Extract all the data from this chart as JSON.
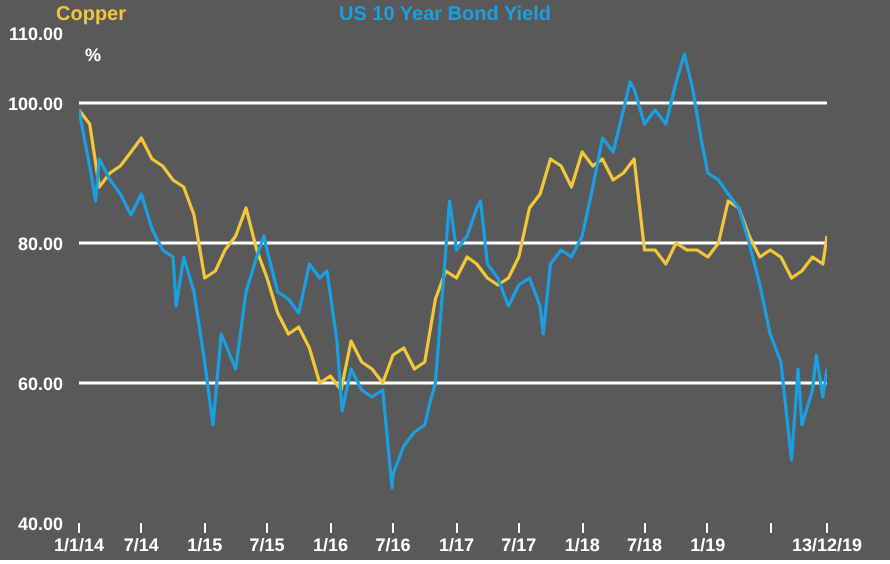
{
  "chart_data": {
    "type": "line",
    "ylabel": "%",
    "legend": "top",
    "grid": "y",
    "line_style": "solid",
    "marker": "none",
    "xlim": [
      "2014-01-01",
      "2019-12-13"
    ],
    "xticks": [
      {
        "value": "2014-01-01",
        "label": "1/1/14"
      },
      {
        "value": "2014-07-01",
        "label": "7/14"
      },
      {
        "value": "2015-01-01",
        "label": "1/15"
      },
      {
        "value": "2015-07-01",
        "label": "7/15"
      },
      {
        "value": "2016-01-01",
        "label": "1/16"
      },
      {
        "value": "2016-07-01",
        "label": "7/16"
      },
      {
        "value": "2017-01-01",
        "label": "1/17"
      },
      {
        "value": "2017-07-01",
        "label": "7/17"
      },
      {
        "value": "2018-01-01",
        "label": "1/18"
      },
      {
        "value": "2018-07-01",
        "label": "7/18"
      },
      {
        "value": "2019-01-01",
        "label": "1/19"
      },
      {
        "value": "2019-07-01",
        "label": null
      },
      {
        "value": "2019-12-13",
        "label": "13/12/19"
      }
    ],
    "ylim": [
      40,
      110
    ],
    "yticks": [
      {
        "value": 40,
        "label": "40.00"
      },
      {
        "value": 60,
        "label": "60.00"
      },
      {
        "value": 80,
        "label": "80.00"
      },
      {
        "value": 100,
        "label": "100.00"
      },
      {
        "value": 110,
        "label": "110.00"
      }
    ],
    "series": [
      {
        "name": "Copper",
        "color": "#f2c73a",
        "x": [
          "2014-01-01",
          "2014-02-01",
          "2014-03-01",
          "2014-04-01",
          "2014-05-01",
          "2014-06-01",
          "2014-07-01",
          "2014-08-01",
          "2014-09-01",
          "2014-10-01",
          "2014-11-01",
          "2014-12-01",
          "2015-01-01",
          "2015-02-01",
          "2015-03-01",
          "2015-04-01",
          "2015-05-01",
          "2015-06-01",
          "2015-07-01",
          "2015-08-01",
          "2015-09-01",
          "2015-10-01",
          "2015-11-01",
          "2015-12-01",
          "2016-01-01",
          "2016-02-01",
          "2016-03-01",
          "2016-04-01",
          "2016-05-01",
          "2016-06-01",
          "2016-07-01",
          "2016-08-01",
          "2016-09-01",
          "2016-10-01",
          "2016-11-01",
          "2016-12-01",
          "2017-01-01",
          "2017-02-01",
          "2017-03-01",
          "2017-04-01",
          "2017-05-01",
          "2017-06-01",
          "2017-07-01",
          "2017-08-01",
          "2017-09-01",
          "2017-10-01",
          "2017-11-01",
          "2017-12-01",
          "2018-01-01",
          "2018-02-01",
          "2018-03-01",
          "2018-04-01",
          "2018-05-01",
          "2018-06-01",
          "2018-07-01",
          "2018-08-01",
          "2018-09-01",
          "2018-10-01",
          "2018-11-01",
          "2018-12-01",
          "2019-01-01",
          "2019-02-01",
          "2019-03-01",
          "2019-04-01",
          "2019-05-01",
          "2019-06-01",
          "2019-07-01",
          "2019-08-01",
          "2019-09-01",
          "2019-10-01",
          "2019-11-01",
          "2019-12-01",
          "2019-12-13"
        ],
        "values": [
          99,
          97,
          88,
          90,
          91,
          93,
          95,
          92,
          91,
          89,
          88,
          84,
          75,
          76,
          79,
          81,
          85,
          79,
          75,
          70,
          67,
          68,
          65,
          60,
          61,
          59,
          66,
          63,
          62,
          60,
          64,
          65,
          62,
          63,
          72,
          76,
          75,
          78,
          77,
          75,
          74,
          75,
          78,
          85,
          87,
          92,
          91,
          88,
          93,
          91,
          92,
          89,
          90,
          92,
          79,
          79,
          77,
          80,
          79,
          79,
          78,
          80,
          86,
          85,
          81,
          78,
          79,
          78,
          75,
          76,
          78,
          77,
          81
        ]
      },
      {
        "name": "US 10 Year Bond Yield",
        "color": "#1a9fe3",
        "x": [
          "2014-01-01",
          "2014-01-20",
          "2014-02-01",
          "2014-02-18",
          "2014-03-01",
          "2014-04-01",
          "2014-05-01",
          "2014-06-01",
          "2014-07-01",
          "2014-08-01",
          "2014-09-01",
          "2014-10-01",
          "2014-10-10",
          "2014-11-01",
          "2014-12-01",
          "2015-01-01",
          "2015-01-25",
          "2015-02-18",
          "2015-04-01",
          "2015-05-01",
          "2015-06-01",
          "2015-06-22",
          "2015-07-01",
          "2015-08-01",
          "2015-09-01",
          "2015-10-01",
          "2015-11-01",
          "2015-12-01",
          "2015-12-22",
          "2016-01-20",
          "2016-02-04",
          "2016-03-01",
          "2016-04-01",
          "2016-05-01",
          "2016-06-01",
          "2016-06-28",
          "2016-07-01",
          "2016-08-01",
          "2016-09-01",
          "2016-10-01",
          "2016-10-15",
          "2016-11-01",
          "2016-12-01",
          "2016-12-12",
          "2017-01-01",
          "2017-02-01",
          "2017-03-01",
          "2017-03-12",
          "2017-04-01",
          "2017-05-01",
          "2017-06-01",
          "2017-07-01",
          "2017-08-01",
          "2017-09-01",
          "2017-09-10",
          "2017-10-01",
          "2017-11-01",
          "2017-12-01",
          "2018-01-01",
          "2018-02-01",
          "2018-03-01",
          "2018-04-01",
          "2018-05-01",
          "2018-05-20",
          "2018-06-01",
          "2018-07-01",
          "2018-08-01",
          "2018-09-01",
          "2018-10-01",
          "2018-10-25",
          "2018-11-18",
          "2018-12-12",
          "2019-01-01",
          "2019-02-01",
          "2019-03-01",
          "2019-04-01",
          "2019-05-01",
          "2019-06-01",
          "2019-07-01",
          "2019-08-01",
          "2019-09-01",
          "2019-09-20",
          "2019-10-01",
          "2019-11-01",
          "2019-11-12",
          "2019-12-01",
          "2019-12-13"
        ],
        "values": [
          99,
          94,
          91,
          86,
          92,
          89,
          87,
          84,
          87,
          82,
          79,
          78,
          71,
          78,
          73,
          63,
          54,
          67,
          62,
          73,
          78,
          81,
          79,
          73,
          72,
          70,
          77,
          75,
          76,
          66,
          56,
          62,
          59,
          58,
          59,
          45,
          47,
          51,
          53,
          54,
          57,
          60,
          79,
          86,
          79,
          81,
          85,
          86,
          77,
          75,
          71,
          74,
          75,
          71,
          67,
          77,
          79,
          78,
          81,
          88,
          95,
          93,
          99,
          103,
          102,
          97,
          99,
          97,
          103,
          107,
          102,
          95,
          90,
          89,
          87,
          85,
          80,
          74,
          67,
          63,
          49,
          62,
          54,
          59,
          64,
          58,
          62
        ]
      }
    ]
  }
}
